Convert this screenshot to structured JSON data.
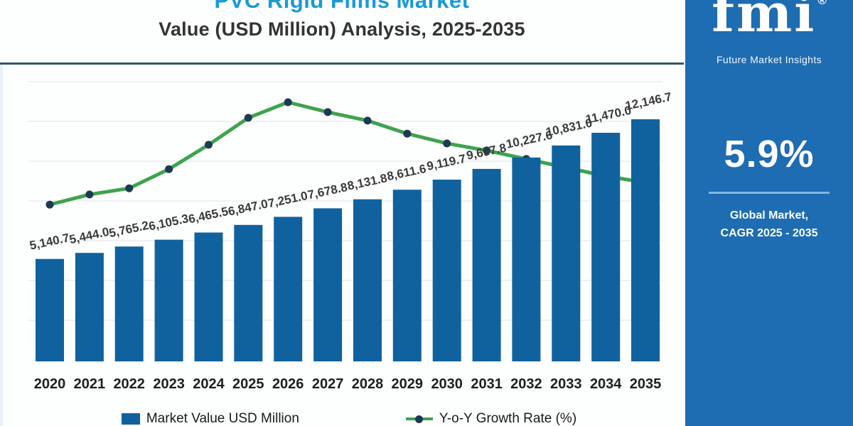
{
  "title": {
    "line1": "PVC Rigid Films Market",
    "line2": "Value (USD Million) Analysis, 2025-2035"
  },
  "panel": {
    "logo_text": "fmi",
    "logo_registered": "®",
    "logo_subtitle": "Future Market Insights",
    "cagr_value": "5.9%",
    "caption_line1": "Global Market,",
    "caption_line2": "CAGR 2025 - 2035"
  },
  "legend": {
    "bar_label": "Market Value USD Million",
    "line_label": "Y-o-Y Growth Rate (%)"
  },
  "colors": {
    "bar": "#0f629e",
    "line": "#3fa34d",
    "dot": "#1d3a52",
    "gridline": "#eef1f4",
    "title_accent": "#1a9ad4",
    "top_rule": "#2f5666",
    "panel_bg": "#1e6cb2",
    "value_label": "#3a3a3a",
    "axis_label": "#1e1e1e"
  },
  "chart_data": {
    "type": "bar",
    "title": "PVC Rigid Films Market Value (USD Million) Analysis, 2025-2035",
    "xlabel": "",
    "ylabel": "",
    "ylim": [
      0,
      12146.7
    ],
    "grid": "horizontal light gridlines",
    "legend_position": "bottom",
    "categories": [
      "2020",
      "2021",
      "2022",
      "2023",
      "2024",
      "2025",
      "2026",
      "2027",
      "2028",
      "2029",
      "2030",
      "2031",
      "2032",
      "2033",
      "2034",
      "2035"
    ],
    "series": [
      {
        "name": "Market Value USD Million",
        "type": "bar",
        "values": [
          5140.7,
          5444.0,
          5765.2,
          6105.3,
          6465.5,
          6847.0,
          7251.0,
          7678.8,
          8131.8,
          8611.6,
          9119.7,
          9657.8,
          10227.6,
          10831.0,
          11470.0,
          12146.7
        ],
        "labels": [
          "5,140.7",
          "5,444.0",
          "5,765.2",
          "6,105.3",
          "6,465.5",
          "6,847.0",
          "7,251.0",
          "7,678.8",
          "8,131.8",
          "8,611.6",
          "9,119.7",
          "9,657.8",
          "10,227.6",
          "10,831.0",
          "11,470.0",
          "12,146.7"
        ]
      },
      {
        "name": "Y-o-Y Growth Rate (%)",
        "type": "line",
        "axis": "unlabeled (no secondary axis shown); heights are relative, peak at 2026",
        "relative_heights_0to1": [
          0.605,
          0.644,
          0.668,
          0.742,
          0.836,
          0.94,
          1.0,
          0.962,
          0.929,
          0.879,
          0.841,
          0.814,
          0.781,
          0.748,
          0.715,
          0.69
        ]
      }
    ]
  }
}
